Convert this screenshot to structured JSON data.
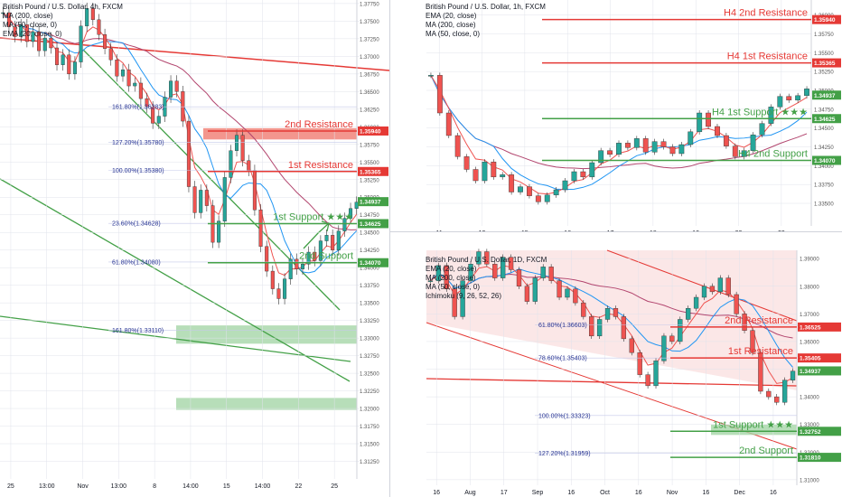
{
  "colors": {
    "red": "#e53935",
    "green": "#43a047",
    "ma_blue": "#2196f3",
    "ma_red": "#ef5350",
    "ma_pink": "#b2456e",
    "grid": "#e0e3eb",
    "axis_text": "#131722",
    "channel_fill": "#f8d7d7",
    "zone_green": "#a5d6a7"
  },
  "chart_data": [
    {
      "id": "left",
      "type": "line",
      "title": "British Pound / U.S. Dollar, 4h, FXCM",
      "indicators": [
        "MA (200, close)",
        "MA (50, close, 0)",
        "EMA (20, close, 0)"
      ],
      "x_ticks": [
        "25",
        "13:00",
        "Nov",
        "13:00",
        "8",
        "14:00",
        "15",
        "14:00",
        "22",
        "25"
      ],
      "y_range": [
        1.31,
        1.378
      ],
      "y_ticks": [
        "1.37750",
        "1.37500",
        "1.37250",
        "1.37000",
        "1.36750",
        "1.36500",
        "1.36250",
        "1.36000",
        "1.35750",
        "1.35500",
        "1.35250",
        "1.35000",
        "1.34750",
        "1.34500",
        "1.34250",
        "1.34000",
        "1.33750",
        "1.33500",
        "1.33250",
        "1.33000",
        "1.32750",
        "1.32500",
        "1.32250",
        "1.32000",
        "1.31750",
        "1.31500",
        "1.31250"
      ],
      "price_labels": [
        {
          "text": "1.35940",
          "value": 1.3594,
          "color": "red"
        },
        {
          "text": "1.35365",
          "value": 1.35365,
          "color": "red"
        },
        {
          "text": "1.34937",
          "value": 1.34937,
          "color": "green"
        },
        {
          "text": "1.34625",
          "value": 1.34625,
          "color": "green"
        },
        {
          "text": "1.34070",
          "value": 1.3407,
          "color": "green"
        }
      ],
      "levels": [
        {
          "label": "2nd Resistance",
          "value": 1.3594,
          "kind": "resistance"
        },
        {
          "label": "1st Resistance",
          "value": 1.35365,
          "kind": "resistance"
        },
        {
          "label": "1st Support ★★★",
          "value": 1.34625,
          "kind": "support"
        },
        {
          "label": "2nd Support",
          "value": 1.3407,
          "kind": "support"
        }
      ],
      "fib_labels": [
        {
          "text": "161.80%(1.36283)",
          "value": 1.36283
        },
        {
          "text": "127.20%(1.35780)",
          "value": 1.3578
        },
        {
          "text": "100.00%(1.35380)",
          "value": 1.3538
        },
        {
          "text": "23.60%(1.34628)",
          "value": 1.34628
        },
        {
          "text": "61.80%(1.34080)",
          "value": 1.3408
        },
        {
          "text": "161.80%(1.33110)",
          "value": 1.3311
        }
      ],
      "close": [
        1.3762,
        1.3742,
        1.3728,
        1.3745,
        1.3721,
        1.3735,
        1.3708,
        1.3726,
        1.3712,
        1.3688,
        1.3702,
        1.3675,
        1.3692,
        1.3743,
        1.3768,
        1.3752,
        1.3731,
        1.3711,
        1.3695,
        1.3672,
        1.3681,
        1.3658,
        1.3662,
        1.364,
        1.3628,
        1.3605,
        1.3615,
        1.3642,
        1.3665,
        1.365,
        1.3608,
        1.3515,
        1.3478,
        1.351,
        1.3488,
        1.3436,
        1.3466,
        1.3528,
        1.3566,
        1.3588,
        1.3552,
        1.3538,
        1.3482,
        1.343,
        1.3395,
        1.337,
        1.3356,
        1.3384,
        1.3412,
        1.3398,
        1.3405,
        1.3422,
        1.341,
        1.3438,
        1.3446,
        1.3425,
        1.3452,
        1.347,
        1.3484,
        1.3493
      ]
    },
    {
      "id": "top-right",
      "type": "line",
      "title": "British Pound / U.S. Dollar, 1h, FXCM",
      "indicators": [
        "EMA (20, close)",
        "MA (200, close)",
        "MA (50, close, 0)"
      ],
      "x_ticks": [
        "11",
        "12",
        "15",
        "16",
        "17",
        "18",
        "19",
        "22",
        "23"
      ],
      "y_range": [
        1.332,
        1.362
      ],
      "y_ticks": [
        "1.36000",
        "1.35750",
        "1.35500",
        "1.35250",
        "1.35000",
        "1.34750",
        "1.34500",
        "1.34250",
        "1.34000",
        "1.33750",
        "1.33500"
      ],
      "price_labels": [
        {
          "text": "1.35940",
          "value": 1.3594,
          "color": "red"
        },
        {
          "text": "1.35365",
          "value": 1.35365,
          "color": "red"
        },
        {
          "text": "1.34937",
          "value": 1.34937,
          "color": "green"
        },
        {
          "text": "1.34625",
          "value": 1.34625,
          "color": "green"
        },
        {
          "text": "1.34070",
          "value": 1.3407,
          "color": "green"
        }
      ],
      "levels": [
        {
          "label": "H4 2nd Resistance",
          "value": 1.3594,
          "kind": "resistance"
        },
        {
          "label": "H4 1st Resistance",
          "value": 1.35365,
          "kind": "resistance"
        },
        {
          "label": "H4 1st Support ★★★",
          "value": 1.34625,
          "kind": "support"
        },
        {
          "label": "H4 2nd Support",
          "value": 1.3407,
          "kind": "support"
        }
      ],
      "close": [
        1.352,
        1.347,
        1.344,
        1.3412,
        1.3395,
        1.338,
        1.3405,
        1.3385,
        1.3388,
        1.3365,
        1.3372,
        1.336,
        1.3352,
        1.3361,
        1.3368,
        1.338,
        1.3392,
        1.3385,
        1.3404,
        1.342,
        1.3415,
        1.343,
        1.3424,
        1.3436,
        1.3418,
        1.3432,
        1.3425,
        1.3416,
        1.3428,
        1.3445,
        1.347,
        1.3452,
        1.344,
        1.3426,
        1.3412,
        1.342,
        1.3441,
        1.3456,
        1.3478,
        1.3492,
        1.3487,
        1.3493,
        1.3502
      ]
    },
    {
      "id": "bottom-right",
      "type": "line",
      "title": "British Pound / U.S. Dollar, 1D, FXCM",
      "indicators": [
        "EMA (20, close)",
        "MA (200, close)",
        "MA (50, close, 0)",
        "Ichimoku (9, 26, 52, 26)"
      ],
      "x_ticks": [
        "16",
        "Aug",
        "17",
        "Sep",
        "16",
        "Oct",
        "16",
        "Nov",
        "16",
        "Dec",
        "16"
      ],
      "y_range": [
        1.308,
        1.393
      ],
      "y_ticks": [
        "1.39000",
        "1.38000",
        "1.37000",
        "1.36000",
        "1.35000",
        "1.34000",
        "1.33000",
        "1.32000",
        "1.31000"
      ],
      "price_labels": [
        {
          "text": "1.36525",
          "value": 1.36525,
          "color": "red"
        },
        {
          "text": "1.35405",
          "value": 1.35405,
          "color": "red"
        },
        {
          "text": "1.34937",
          "value": 1.34937,
          "color": "green"
        },
        {
          "text": "1.32752",
          "value": 1.32752,
          "color": "green"
        },
        {
          "text": "1.31810",
          "value": 1.3181,
          "color": "green"
        }
      ],
      "levels": [
        {
          "label": "2nd Resistance",
          "value": 1.36525,
          "kind": "resistance"
        },
        {
          "label": "1st Resistance",
          "value": 1.35405,
          "kind": "resistance"
        },
        {
          "label": "1st Support ★★★",
          "value": 1.32752,
          "kind": "support"
        },
        {
          "label": "2nd Support",
          "value": 1.3181,
          "kind": "support"
        }
      ],
      "fib_labels": [
        {
          "text": "61.80%(1.36603)",
          "value": 1.36603
        },
        {
          "text": "78.60%(1.35403)",
          "value": 1.35403
        },
        {
          "text": "100.00%(1.33323)",
          "value": 1.33323
        },
        {
          "text": "127.20%(1.31959)",
          "value": 1.31959
        }
      ],
      "close": [
        1.382,
        1.3875,
        1.379,
        1.369,
        1.382,
        1.388,
        1.3925,
        1.388,
        1.383,
        1.3905,
        1.386,
        1.38,
        1.3745,
        1.383,
        1.387,
        1.382,
        1.376,
        1.379,
        1.374,
        1.369,
        1.362,
        1.368,
        1.372,
        1.369,
        1.361,
        1.356,
        1.348,
        1.344,
        1.353,
        1.362,
        1.36,
        1.368,
        1.372,
        1.376,
        1.38,
        1.378,
        1.383,
        1.377,
        1.37,
        1.364,
        1.356,
        1.342,
        1.34,
        1.338,
        1.346,
        1.3493
      ]
    }
  ]
}
